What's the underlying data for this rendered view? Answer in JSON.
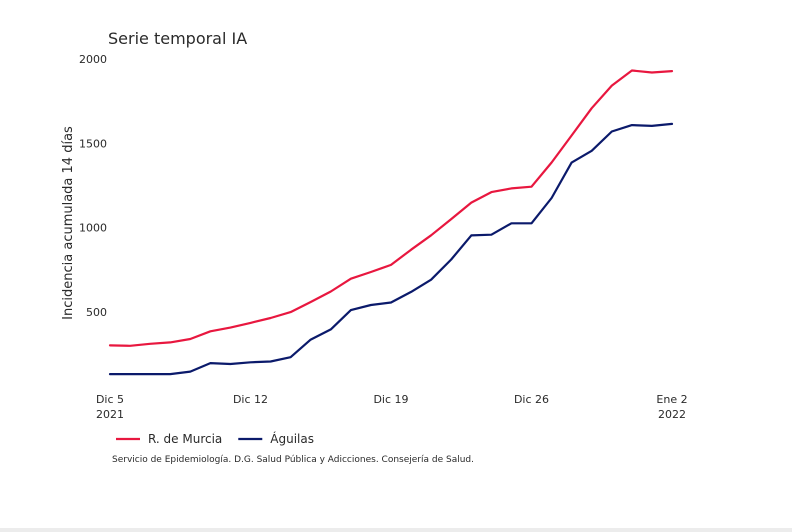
{
  "chart_data": {
    "type": "line",
    "title": "Serie temporal IA",
    "ylabel": "Incidencia acumulada 14 días",
    "xlabel": "",
    "ylim": [
      0,
      2000
    ],
    "yticks": [
      {
        "value": 500,
        "label": "500"
      },
      {
        "value": 1000,
        "label": "1000"
      },
      {
        "value": 1500,
        "label": "1500"
      },
      {
        "value": 2000,
        "label": "2000"
      }
    ],
    "xlim": [
      "2021-12-05",
      "2022-01-02"
    ],
    "xticks": [
      {
        "date": "2021-12-05",
        "line1": "Dic 5",
        "line2": "2021"
      },
      {
        "date": "2021-12-12",
        "line1": "Dic 12",
        "line2": ""
      },
      {
        "date": "2021-12-19",
        "line1": "Dic 19",
        "line2": ""
      },
      {
        "date": "2021-12-26",
        "line1": "Dic 26",
        "line2": ""
      },
      {
        "date": "2022-01-02",
        "line1": "Ene 2",
        "line2": "2022"
      }
    ],
    "grid": false,
    "legend_position": "bottom-left",
    "x": [
      "2021-12-05",
      "2021-12-06",
      "2021-12-07",
      "2021-12-08",
      "2021-12-09",
      "2021-12-10",
      "2021-12-11",
      "2021-12-12",
      "2021-12-13",
      "2021-12-14",
      "2021-12-15",
      "2021-12-16",
      "2021-12-17",
      "2021-12-18",
      "2021-12-19",
      "2021-12-20",
      "2021-12-21",
      "2021-12-22",
      "2021-12-23",
      "2021-12-24",
      "2021-12-25",
      "2021-12-26",
      "2021-12-27",
      "2021-12-28",
      "2021-12-29",
      "2021-12-30",
      "2021-12-31",
      "2022-01-01",
      "2022-01-02"
    ],
    "series": [
      {
        "name": "R. de Murcia",
        "color": "#e8173f",
        "values": [
          300,
          298,
          310,
          318,
          338,
          384,
          406,
          434,
          463,
          498,
          558,
          620,
          696,
          736,
          778,
          868,
          954,
          1050,
          1148,
          1210,
          1232,
          1242,
          1386,
          1546,
          1708,
          1842,
          1932,
          1920,
          1928
        ]
      },
      {
        "name": "Águilas",
        "color": "#0b1a6b",
        "values": [
          130,
          130,
          130,
          130,
          145,
          195,
          190,
          200,
          205,
          230,
          335,
          395,
          510,
          540,
          555,
          618,
          690,
          810,
          953,
          957,
          1025,
          1025,
          1175,
          1385,
          1455,
          1570,
          1608,
          1603,
          1615
        ]
      }
    ],
    "source_note": "Servicio de Epidemiología. D.G. Salud Pública y Adicciones. Consejería de Salud."
  }
}
